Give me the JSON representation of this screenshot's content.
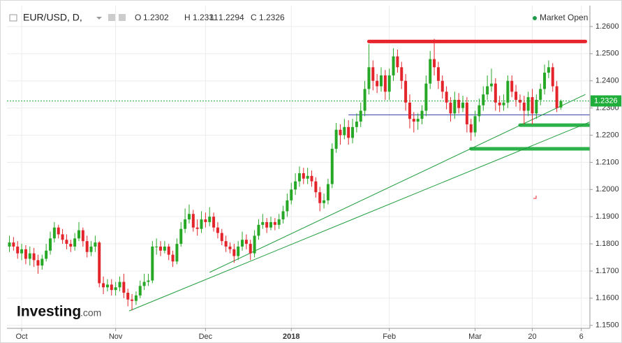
{
  "chart_data": {
    "type": "candlestick",
    "title": "EUR/USD, D,",
    "ohlc_labels": [
      "O",
      "H",
      "L",
      "C"
    ],
    "status": "Market Open",
    "watermark": [
      "Investing",
      ".com"
    ],
    "up_color": "#26a826",
    "down_color": "#e3242b",
    "status_color": "#1e9c4a",
    "last_price_color": "#1fae3a",
    "grid": true,
    "xlim": [
      -3.6,
      139.1
    ],
    "ylim": [
      1.1489,
      1.2677
    ],
    "xticks": [
      {
        "value": 0,
        "label": "Oct"
      },
      {
        "value": 23,
        "label": "Nov"
      },
      {
        "value": 45,
        "label": "Dec"
      },
      {
        "value": 66,
        "label": "2018"
      },
      {
        "value": 90,
        "label": "Feb"
      },
      {
        "value": 111,
        "label": "Mar"
      },
      {
        "value": 125,
        "label": "20"
      },
      {
        "value": 137,
        "label": "6"
      }
    ],
    "yticks": [
      {
        "value": 1.15,
        "label": "1.1500"
      },
      {
        "value": 1.16,
        "label": "1.1600"
      },
      {
        "value": 1.17,
        "label": "1.1700"
      },
      {
        "value": 1.18,
        "label": "1.1800"
      },
      {
        "value": 1.19,
        "label": "1.1900"
      },
      {
        "value": 1.2,
        "label": "1.2000"
      },
      {
        "value": 1.21,
        "label": "1.2100"
      },
      {
        "value": 1.22,
        "label": "1.2200"
      },
      {
        "value": 1.23,
        "label": "1.2300"
      },
      {
        "value": 1.24,
        "label": "1.2400"
      },
      {
        "value": 1.25,
        "label": "1.2500"
      },
      {
        "value": 1.26,
        "label": "1.2600"
      }
    ],
    "x": [
      -3,
      -2,
      -1,
      0,
      1,
      2,
      3,
      4,
      5,
      6,
      7,
      8,
      9,
      10,
      11,
      12,
      13,
      14,
      15,
      16,
      17,
      18,
      19,
      20,
      21,
      22,
      23,
      24,
      25,
      26,
      27,
      28,
      29,
      30,
      31,
      32,
      33,
      34,
      35,
      36,
      37,
      38,
      39,
      40,
      41,
      42,
      43,
      44,
      45,
      46,
      47,
      48,
      49,
      50,
      51,
      52,
      53,
      54,
      55,
      56,
      57,
      58,
      59,
      60,
      61,
      62,
      63,
      64,
      65,
      66,
      67,
      68,
      69,
      70,
      71,
      72,
      73,
      74,
      75,
      76,
      77,
      78,
      79,
      80,
      81,
      82,
      83,
      84,
      85,
      86,
      87,
      88,
      89,
      90,
      91,
      92,
      93,
      94,
      95,
      96,
      97,
      98,
      99,
      100,
      101,
      102,
      103,
      104,
      105,
      106,
      107,
      108,
      109,
      110,
      111,
      112,
      113,
      114,
      115,
      116,
      117,
      118,
      119,
      120,
      121,
      122,
      123,
      124,
      125,
      126,
      127,
      128,
      129,
      130,
      131,
      132
    ],
    "open": [
      1.179,
      1.1805,
      1.179,
      1.1765,
      1.178,
      1.1745,
      1.1765,
      1.174,
      1.172,
      1.1745,
      1.1775,
      1.182,
      1.186,
      1.1835,
      1.1815,
      1.18,
      1.179,
      1.182,
      1.185,
      1.181,
      1.177,
      1.179,
      1.1805,
      1.1655,
      1.164,
      1.165,
      1.163,
      1.164,
      1.166,
      1.162,
      1.1595,
      1.159,
      1.161,
      1.1645,
      1.166,
      1.1665,
      1.179,
      1.179,
      1.1775,
      1.179,
      1.176,
      1.1735,
      1.18,
      1.1855,
      1.189,
      1.191,
      1.186,
      1.1855,
      1.189,
      1.188,
      1.19,
      1.186,
      1.184,
      1.181,
      1.179,
      1.178,
      1.1755,
      1.179,
      1.1815,
      1.18,
      1.1765,
      1.183,
      1.187,
      1.188,
      1.186,
      1.188,
      1.187,
      1.189,
      1.192,
      1.196,
      1.2,
      1.203,
      1.206,
      1.204,
      1.205,
      1.203,
      1.199,
      1.195,
      1.196,
      1.202,
      1.215,
      1.222,
      1.22,
      1.223,
      1.219,
      1.223,
      1.225,
      1.229,
      1.237,
      1.245,
      1.24,
      1.238,
      1.242,
      1.236,
      1.242,
      1.249,
      1.245,
      1.24,
      1.232,
      1.226,
      1.225,
      1.226,
      1.229,
      1.239,
      1.248,
      1.245,
      1.24,
      1.236,
      1.232,
      1.228,
      1.233,
      1.23,
      1.232,
      1.224,
      1.221,
      1.227,
      1.231,
      1.235,
      1.238,
      1.239,
      1.232,
      1.231,
      1.232,
      1.24,
      1.236,
      1.233,
      1.232,
      1.229,
      1.234,
      1.228,
      1.233,
      1.237,
      1.243,
      1.245,
      1.238,
      1.2302
    ],
    "high": [
      1.183,
      1.1825,
      1.181,
      1.18,
      1.1795,
      1.179,
      1.1785,
      1.176,
      1.176,
      1.18,
      1.1845,
      1.188,
      1.187,
      1.1855,
      1.1835,
      1.1815,
      1.184,
      1.188,
      1.186,
      1.183,
      1.181,
      1.183,
      1.181,
      1.168,
      1.167,
      1.167,
      1.166,
      1.168,
      1.169,
      1.1635,
      1.1615,
      1.1625,
      1.1665,
      1.169,
      1.169,
      1.181,
      1.182,
      1.181,
      1.181,
      1.18,
      1.1775,
      1.182,
      1.188,
      1.193,
      1.1945,
      1.1925,
      1.189,
      1.192,
      1.1915,
      1.1935,
      1.1915,
      1.188,
      1.1855,
      1.183,
      1.1805,
      1.18,
      1.181,
      1.1845,
      1.1835,
      1.1815,
      1.185,
      1.189,
      1.191,
      1.1895,
      1.19,
      1.1895,
      1.191,
      1.194,
      1.1985,
      1.2025,
      1.206,
      1.2085,
      1.208,
      1.208,
      1.207,
      1.2045,
      1.201,
      1.1985,
      1.204,
      1.217,
      1.2245,
      1.224,
      1.226,
      1.2255,
      1.226,
      1.228,
      1.232,
      1.24,
      1.2535,
      1.2475,
      1.2425,
      1.245,
      1.244,
      1.2445,
      1.252,
      1.2515,
      1.247,
      1.2425,
      1.235,
      1.2285,
      1.228,
      1.231,
      1.242,
      1.251,
      1.2555,
      1.247,
      1.242,
      1.238,
      1.234,
      1.236,
      1.2355,
      1.2345,
      1.234,
      1.226,
      1.229,
      1.2335,
      1.238,
      1.242,
      1.2445,
      1.241,
      1.2345,
      1.235,
      1.242,
      1.242,
      1.2385,
      1.235,
      1.2345,
      1.236,
      1.237,
      1.235,
      1.239,
      1.246,
      1.2475,
      1.2465,
      1.24,
      1.2331
    ],
    "low": [
      1.177,
      1.1775,
      1.1745,
      1.174,
      1.1725,
      1.172,
      1.1715,
      1.169,
      1.1705,
      1.1735,
      1.176,
      1.1805,
      1.182,
      1.18,
      1.178,
      1.177,
      1.1775,
      1.181,
      1.179,
      1.175,
      1.1755,
      1.177,
      1.164,
      1.1615,
      1.1625,
      1.161,
      1.161,
      1.1625,
      1.16,
      1.157,
      1.1555,
      1.1575,
      1.16,
      1.163,
      1.1645,
      1.1655,
      1.176,
      1.1755,
      1.1765,
      1.174,
      1.1715,
      1.1725,
      1.179,
      1.184,
      1.1875,
      1.1845,
      1.183,
      1.184,
      1.186,
      1.1865,
      1.1845,
      1.182,
      1.1795,
      1.177,
      1.1765,
      1.173,
      1.174,
      1.1775,
      1.178,
      1.174,
      1.175,
      1.1815,
      1.1855,
      1.184,
      1.185,
      1.185,
      1.1855,
      1.1875,
      1.19,
      1.1945,
      1.198,
      1.201,
      1.202,
      1.202,
      1.201,
      1.197,
      1.192,
      1.193,
      1.1945,
      1.2005,
      1.2135,
      1.2165,
      1.2185,
      1.2165,
      1.217,
      1.221,
      1.223,
      1.227,
      1.235,
      1.2365,
      1.2355,
      1.236,
      1.233,
      1.233,
      1.24,
      1.243,
      1.237,
      1.229,
      1.2225,
      1.221,
      1.222,
      1.224,
      1.227,
      1.237,
      1.242,
      1.237,
      1.2335,
      1.2295,
      1.225,
      1.226,
      1.228,
      1.2285,
      1.221,
      1.218,
      1.2195,
      1.225,
      1.229,
      1.233,
      1.236,
      1.229,
      1.2285,
      1.229,
      1.23,
      1.234,
      1.2305,
      1.229,
      1.224,
      1.227,
      1.224,
      1.226,
      1.231,
      1.235,
      1.241,
      1.236,
      1.2285,
      1.2294
    ],
    "close": [
      1.1805,
      1.179,
      1.1765,
      1.178,
      1.1745,
      1.1765,
      1.174,
      1.172,
      1.1745,
      1.1775,
      1.182,
      1.186,
      1.1835,
      1.1815,
      1.18,
      1.179,
      1.182,
      1.185,
      1.181,
      1.177,
      1.179,
      1.1805,
      1.1655,
      1.164,
      1.165,
      1.163,
      1.164,
      1.166,
      1.162,
      1.1595,
      1.159,
      1.161,
      1.1645,
      1.166,
      1.1665,
      1.179,
      1.179,
      1.1775,
      1.179,
      1.176,
      1.1735,
      1.18,
      1.1855,
      1.189,
      1.191,
      1.186,
      1.1855,
      1.189,
      1.188,
      1.19,
      1.186,
      1.184,
      1.181,
      1.179,
      1.178,
      1.1755,
      1.179,
      1.1815,
      1.18,
      1.1765,
      1.183,
      1.187,
      1.188,
      1.186,
      1.188,
      1.187,
      1.189,
      1.192,
      1.196,
      1.2,
      1.203,
      1.206,
      1.204,
      1.205,
      1.203,
      1.199,
      1.195,
      1.196,
      1.202,
      1.215,
      1.222,
      1.22,
      1.223,
      1.219,
      1.223,
      1.225,
      1.229,
      1.237,
      1.245,
      1.24,
      1.238,
      1.242,
      1.236,
      1.242,
      1.249,
      1.245,
      1.24,
      1.232,
      1.226,
      1.225,
      1.226,
      1.229,
      1.239,
      1.248,
      1.245,
      1.24,
      1.236,
      1.232,
      1.228,
      1.233,
      1.23,
      1.232,
      1.224,
      1.221,
      1.227,
      1.231,
      1.235,
      1.238,
      1.239,
      1.232,
      1.231,
      1.232,
      1.24,
      1.236,
      1.233,
      1.232,
      1.229,
      1.234,
      1.228,
      1.233,
      1.237,
      1.243,
      1.245,
      1.238,
      1.23,
      1.2326
    ],
    "drawings": [
      {
        "color": "#e8242c",
        "thick": true,
        "x": [
          85,
          138
        ],
        "y": [
          1.2545,
          1.2545
        ]
      },
      {
        "color": "#2f3ea8",
        "thick": false,
        "x": [
          80,
          140
        ],
        "y": [
          1.2275,
          1.2275
        ]
      },
      {
        "color": "#2cb24a",
        "thick": true,
        "x": [
          122,
          139
        ],
        "y": [
          1.2237,
          1.2237
        ]
      },
      {
        "color": "#2cb24a",
        "thick": true,
        "x": [
          110,
          140
        ],
        "y": [
          1.215,
          1.215
        ]
      },
      {
        "color": "#1e9c3a",
        "thick": false,
        "x": [
          26.3,
          139
        ],
        "y": [
          1.1553,
          1.2248
        ]
      },
      {
        "color": "#1e9c3a",
        "thick": false,
        "x": [
          46,
          138
        ],
        "y": [
          1.1695,
          1.235
        ]
      }
    ]
  }
}
